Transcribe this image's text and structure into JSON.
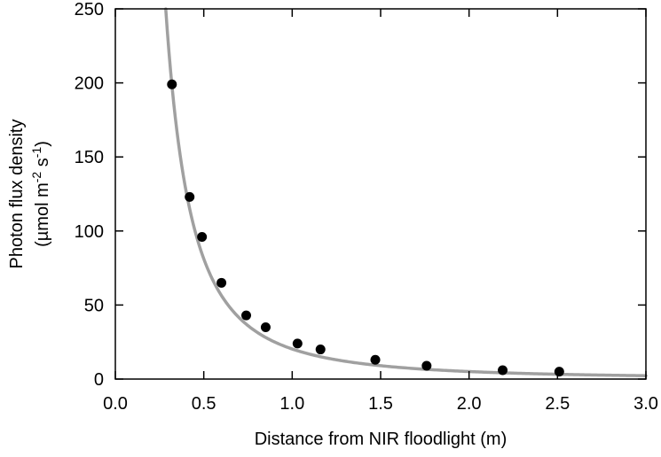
{
  "chart_data": {
    "type": "scatter",
    "xlabel": "Distance from NIR floodlight (m)",
    "ylabel": {
      "line1": "Photon flux density",
      "line2_prefix": "(µmol m",
      "line2_exp1": "-2",
      "line2_mid": " s",
      "line2_exp2": "-1",
      "line2_suffix": ")"
    },
    "xlim": [
      0,
      3.0
    ],
    "ylim": [
      0,
      250
    ],
    "x_ticks": [
      "0.0",
      "0.5",
      "1.0",
      "1.5",
      "2.0",
      "2.5",
      "3.0"
    ],
    "y_ticks": [
      "0",
      "50",
      "100",
      "150",
      "200",
      "250"
    ],
    "series": [
      {
        "kind": "points",
        "color": "#000000",
        "x": [
          0.32,
          0.42,
          0.49,
          0.6,
          0.74,
          0.85,
          1.03,
          1.16,
          1.47,
          1.76,
          2.19,
          2.51
        ],
        "y": [
          199,
          123,
          96,
          65,
          43,
          35,
          24,
          20,
          13,
          9,
          6,
          5
        ]
      },
      {
        "kind": "fit-curve",
        "color": "#a0a0a0",
        "equation": "y = 20.3 * x^-2",
        "coefficient": 20.3,
        "exponent": -2,
        "x_start": 0.285,
        "x_end": 3.0
      }
    ]
  }
}
